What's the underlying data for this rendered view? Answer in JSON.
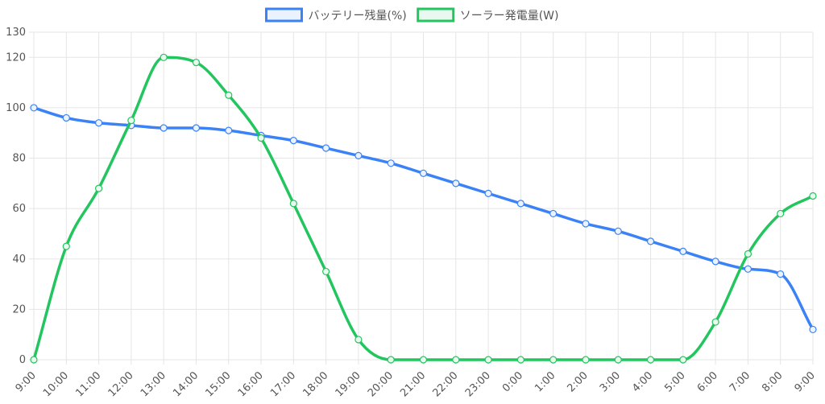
{
  "chart_data": {
    "type": "line",
    "categories": [
      "9:00",
      "10:00",
      "11:00",
      "12:00",
      "13:00",
      "14:00",
      "15:00",
      "16:00",
      "17:00",
      "18:00",
      "19:00",
      "20:00",
      "21:00",
      "22:00",
      "23:00",
      "0:00",
      "1:00",
      "2:00",
      "3:00",
      "4:00",
      "5:00",
      "6:00",
      "7:00",
      "8:00",
      "9:00"
    ],
    "series": [
      {
        "name": "バッテリー残量(%)",
        "color": "#3b82f6",
        "fill": "#eaf2fe",
        "values": [
          100,
          96,
          94,
          93,
          92,
          92,
          91,
          89,
          87,
          84,
          81,
          78,
          74,
          70,
          66,
          62,
          58,
          54,
          51,
          47,
          43,
          39,
          36,
          34,
          12
        ]
      },
      {
        "name": "ソーラー発電量(W)",
        "color": "#22c55e",
        "fill": "#e9f9ef",
        "values": [
          0,
          45,
          68,
          95,
          120,
          118,
          105,
          88,
          62,
          35,
          8,
          0,
          0,
          0,
          0,
          0,
          0,
          0,
          0,
          0,
          0,
          15,
          42,
          58,
          65
        ]
      }
    ],
    "y_ticks": [
      0,
      20,
      40,
      60,
      80,
      100,
      120,
      130
    ],
    "ylim": [
      0,
      130
    ],
    "grid": true,
    "legend_position": "top-center"
  }
}
